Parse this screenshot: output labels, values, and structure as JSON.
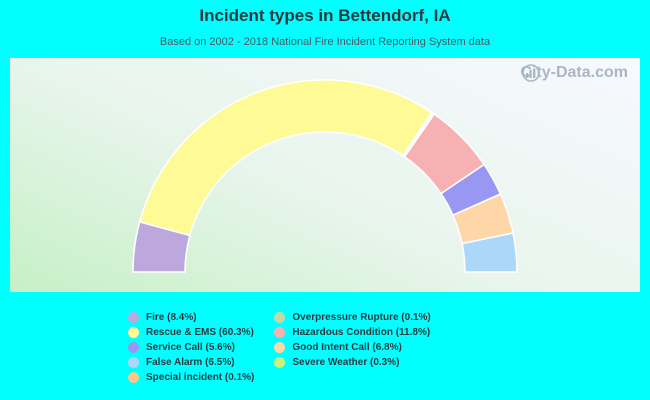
{
  "title": "Incident types in Bettendorf, IA",
  "subtitle": "Based on 2002 - 2018 National Fire Incident Reporting System data",
  "watermark": "City-Data.com",
  "chart_data": {
    "type": "pie",
    "style": "half-donut",
    "slices": [
      {
        "label": "Fire",
        "value": 8.4,
        "display": "Fire (8.4%)",
        "color": "#bca8dc"
      },
      {
        "label": "Rescue & EMS",
        "value": 60.3,
        "display": "Rescue & EMS (60.3%)",
        "color": "#fefa96"
      },
      {
        "label": "Special incident",
        "value": 0.1,
        "display": "Special incident (0.1%)",
        "color": "#f4c98a"
      },
      {
        "label": "Severe Weather",
        "value": 0.3,
        "display": "Severe Weather (0.3%)",
        "color": "#c6f27e"
      },
      {
        "label": "Overpressure Rupture",
        "value": 0.1,
        "display": "Overpressure Rupture (0.1%)",
        "color": "#c4d8a6"
      },
      {
        "label": "Hazardous Condition",
        "value": 11.8,
        "display": "Hazardous Condition (11.8%)",
        "color": "#f6b2b2"
      },
      {
        "label": "Service Call",
        "value": 5.6,
        "display": "Service Call (5.6%)",
        "color": "#9898f2"
      },
      {
        "label": "Good Intent Call",
        "value": 6.8,
        "display": "Good Intent Call (6.8%)",
        "color": "#fed6a8"
      },
      {
        "label": "False Alarm",
        "value": 6.5,
        "display": "False Alarm (6.5%)",
        "color": "#acd6fa"
      }
    ],
    "legend": {
      "placement": "bottom",
      "columns": [
        [
          "Fire",
          "Rescue & EMS",
          "Service Call",
          "False Alarm",
          "Special incident"
        ],
        [
          "Overpressure Rupture",
          "Hazardous Condition",
          "Good Intent Call",
          "Severe Weather"
        ]
      ]
    }
  }
}
